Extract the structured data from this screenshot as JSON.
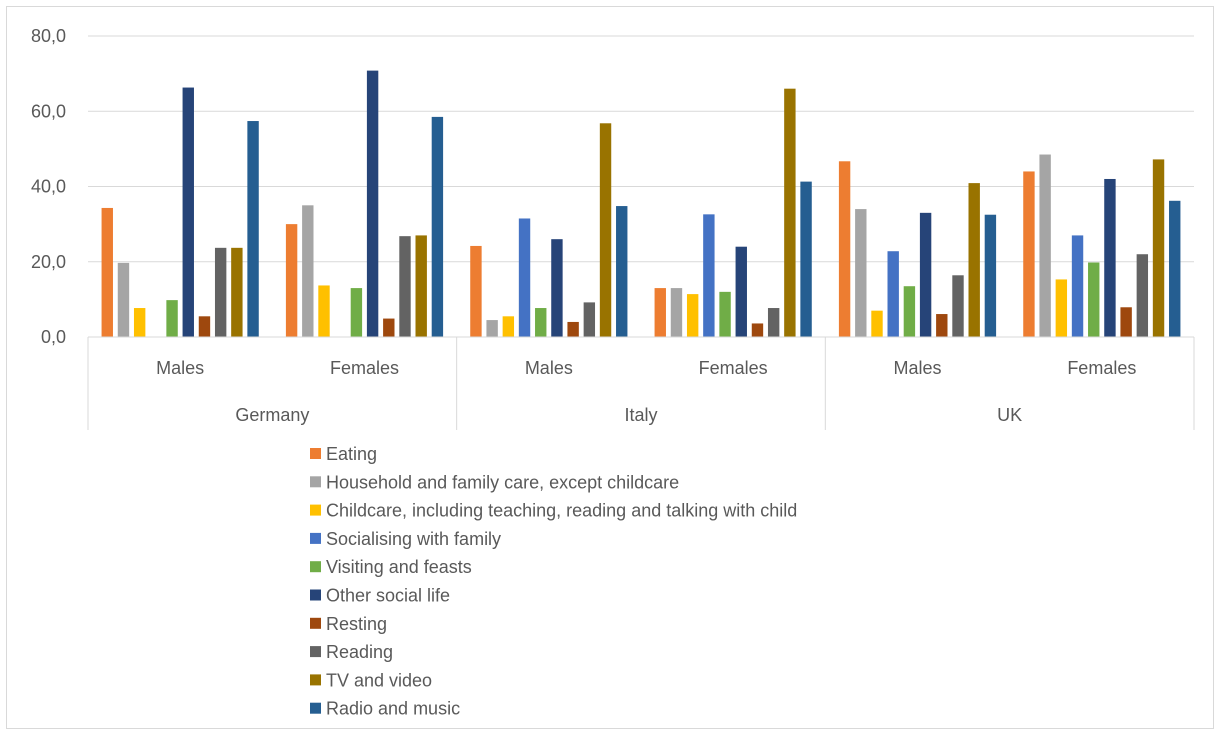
{
  "chart_data": {
    "type": "bar",
    "groups": [
      {
        "label": "Germany",
        "categories": [
          "Males",
          "Females"
        ]
      },
      {
        "label": "Italy",
        "categories": [
          "Males",
          "Females"
        ]
      },
      {
        "label": "UK",
        "categories": [
          "Males",
          "Females"
        ]
      }
    ],
    "ylim": [
      0,
      80
    ],
    "yticks": [
      "0,0",
      "20,0",
      "40,0",
      "60,0",
      "80,0"
    ],
    "grid": true,
    "legend_position": "bottom",
    "series": [
      {
        "name": "Eating",
        "color": "#ED7D31",
        "values": [
          34.3,
          30.0,
          24.2,
          13.0,
          46.7,
          44.0
        ]
      },
      {
        "name": "Household and family care, except childcare",
        "color": "#A5A5A5",
        "values": [
          19.7,
          35.0,
          4.5,
          13.0,
          34.0,
          48.5
        ]
      },
      {
        "name": "Childcare, including teaching, reading and talking with child",
        "color": "#FFC000",
        "values": [
          7.7,
          13.7,
          5.5,
          11.4,
          7.0,
          15.3
        ]
      },
      {
        "name": "Socialising with family",
        "color": "#4472C4",
        "values": [
          0,
          0,
          31.5,
          32.6,
          22.8,
          27.0
        ]
      },
      {
        "name": "Visiting and feasts",
        "color": "#70AD47",
        "values": [
          9.8,
          13.0,
          7.7,
          12.0,
          13.5,
          19.8
        ]
      },
      {
        "name": "Other social life",
        "color": "#264478",
        "values": [
          66.3,
          70.8,
          26.0,
          24.0,
          33.0,
          42.0
        ]
      },
      {
        "name": "Resting",
        "color": "#9E480E",
        "values": [
          5.5,
          4.9,
          4.0,
          3.6,
          6.1,
          7.9
        ]
      },
      {
        "name": "Reading",
        "color": "#636363",
        "values": [
          23.7,
          26.8,
          9.2,
          7.7,
          16.4,
          22.0
        ]
      },
      {
        "name": "TV and video",
        "color": "#997300",
        "values": [
          23.7,
          27.0,
          56.8,
          66.0,
          40.9,
          47.2
        ]
      },
      {
        "name": "Radio and music",
        "color": "#255E91",
        "values": [
          57.4,
          58.5,
          34.8,
          41.3,
          32.5,
          36.2
        ]
      }
    ]
  }
}
